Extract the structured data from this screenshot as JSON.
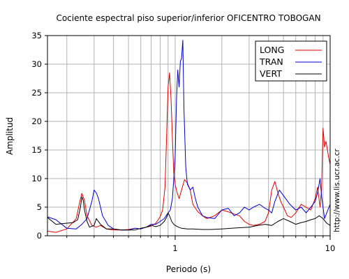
{
  "chart_data": {
    "type": "line",
    "title": "Cociente espectral piso superior/inferior OFICENTRO TOBOGAN",
    "xlabel": "Periodo (s)",
    "ylabel": "Amplitud",
    "xscale": "log",
    "xlim": [
      0.15,
      10
    ],
    "ylim": [
      0,
      35
    ],
    "x_ticks": [
      1,
      10
    ],
    "x_tick_labels": [
      "1",
      "10"
    ],
    "y_ticks": [
      0,
      5,
      10,
      15,
      20,
      25,
      30,
      35
    ],
    "y_tick_labels": [
      "0",
      "5",
      "10",
      "15",
      "20",
      "25",
      "30",
      "35"
    ],
    "grid": true,
    "legend_position": "top-right",
    "side_label": "http://www.lis.ucr.ac.cr",
    "series": [
      {
        "name": "LONG",
        "color": "#e00000",
        "x": [
          0.15,
          0.17,
          0.2,
          0.23,
          0.245,
          0.25,
          0.26,
          0.27,
          0.29,
          0.31,
          0.33,
          0.36,
          0.4,
          0.45,
          0.5,
          0.55,
          0.6,
          0.65,
          0.7,
          0.75,
          0.8,
          0.83,
          0.86,
          0.88,
          0.9,
          0.92,
          0.94,
          0.96,
          0.98,
          1.0,
          1.03,
          1.06,
          1.1,
          1.15,
          1.2,
          1.25,
          1.3,
          1.4,
          1.5,
          1.6,
          1.8,
          2.0,
          2.2,
          2.4,
          2.6,
          2.8,
          3.0,
          3.2,
          3.5,
          3.8,
          4.0,
          4.2,
          4.4,
          4.6,
          4.8,
          5.0,
          5.3,
          5.6,
          6.0,
          6.5,
          7.0,
          7.5,
          8.0,
          8.3,
          8.6,
          8.8,
          9.0,
          9.2,
          9.4,
          9.6,
          9.8,
          10.0
        ],
        "y": [
          0.8,
          0.6,
          1.2,
          3.0,
          6.5,
          7.4,
          6.2,
          3.5,
          1.8,
          1.5,
          1.8,
          1.2,
          1.0,
          1.0,
          1.1,
          1.3,
          1.2,
          1.5,
          1.7,
          2.2,
          3.3,
          4.5,
          8.5,
          17.0,
          26.0,
          28.5,
          24.0,
          17.0,
          11.0,
          9.0,
          7.5,
          6.5,
          8.0,
          9.8,
          9.2,
          8.0,
          5.5,
          4.2,
          3.5,
          3.0,
          3.5,
          4.5,
          4.2,
          3.8,
          3.5,
          2.5,
          2.0,
          1.8,
          2.0,
          2.5,
          4.0,
          8.0,
          9.5,
          7.5,
          6.0,
          5.0,
          3.5,
          3.2,
          4.0,
          5.5,
          5.0,
          4.5,
          6.5,
          8.5,
          5.0,
          8.0,
          18.8,
          15.5,
          16.5,
          15.0,
          13.5,
          12.5
        ]
      },
      {
        "name": "TRAN",
        "color": "#0000cc",
        "x": [
          0.15,
          0.17,
          0.2,
          0.23,
          0.25,
          0.27,
          0.29,
          0.3,
          0.31,
          0.32,
          0.34,
          0.37,
          0.4,
          0.45,
          0.5,
          0.55,
          0.6,
          0.65,
          0.7,
          0.75,
          0.8,
          0.85,
          0.9,
          0.93,
          0.96,
          0.98,
          1.0,
          1.02,
          1.04,
          1.06,
          1.08,
          1.1,
          1.12,
          1.14,
          1.17,
          1.2,
          1.25,
          1.3,
          1.35,
          1.4,
          1.5,
          1.6,
          1.8,
          2.0,
          2.2,
          2.4,
          2.6,
          2.8,
          3.0,
          3.2,
          3.5,
          3.8,
          4.0,
          4.2,
          4.4,
          4.7,
          5.0,
          5.5,
          6.0,
          6.5,
          7.0,
          7.5,
          8.0,
          8.3,
          8.6,
          8.8,
          9.0,
          9.2,
          9.5,
          10.0
        ],
        "y": [
          3.3,
          2.8,
          1.3,
          1.2,
          2.0,
          3.0,
          6.0,
          8.0,
          7.5,
          6.5,
          3.5,
          1.8,
          1.2,
          1.0,
          1.0,
          1.3,
          1.2,
          1.5,
          2.0,
          2.0,
          2.5,
          3.0,
          4.0,
          4.5,
          6.5,
          10.0,
          13.5,
          24.0,
          29.0,
          26.0,
          30.5,
          31.0,
          34.2,
          22.0,
          12.0,
          9.0,
          8.0,
          8.5,
          6.5,
          5.0,
          3.5,
          3.2,
          3.0,
          4.5,
          4.8,
          3.5,
          4.0,
          5.0,
          4.5,
          5.0,
          5.5,
          4.8,
          4.5,
          4.0,
          6.0,
          8.0,
          7.0,
          5.5,
          4.5,
          5.0,
          4.0,
          5.0,
          6.0,
          7.5,
          10.0,
          7.0,
          5.0,
          3.0,
          4.0,
          5.5
        ]
      },
      {
        "name": "VERT",
        "color": "#000000",
        "x": [
          0.15,
          0.17,
          0.2,
          0.22,
          0.235,
          0.245,
          0.25,
          0.255,
          0.26,
          0.27,
          0.28,
          0.3,
          0.31,
          0.33,
          0.36,
          0.4,
          0.45,
          0.5,
          0.55,
          0.6,
          0.65,
          0.7,
          0.75,
          0.8,
          0.85,
          0.88,
          0.9,
          0.92,
          0.95,
          0.98,
          1.0,
          1.05,
          1.1,
          1.2,
          1.3,
          1.5,
          1.7,
          2.0,
          2.3,
          2.6,
          3.0,
          3.4,
          3.8,
          4.2,
          4.6,
          5.0,
          5.5,
          6.0,
          6.5,
          7.0,
          7.5,
          8.0,
          8.5,
          9.0,
          9.5,
          10.0
        ],
        "y": [
          3.2,
          2.0,
          2.2,
          2.3,
          2.8,
          5.0,
          6.8,
          6.2,
          4.5,
          2.5,
          1.5,
          1.8,
          3.0,
          2.0,
          1.2,
          1.2,
          1.0,
          1.0,
          1.0,
          1.3,
          1.5,
          1.8,
          1.6,
          1.8,
          2.5,
          3.2,
          4.0,
          3.5,
          2.5,
          2.0,
          1.8,
          1.5,
          1.3,
          1.2,
          1.2,
          1.1,
          1.1,
          1.2,
          1.3,
          1.4,
          1.5,
          1.8,
          2.0,
          1.8,
          2.5,
          3.0,
          2.5,
          2.0,
          2.3,
          2.5,
          2.8,
          3.0,
          3.5,
          3.0,
          2.2,
          1.8
        ]
      }
    ]
  }
}
